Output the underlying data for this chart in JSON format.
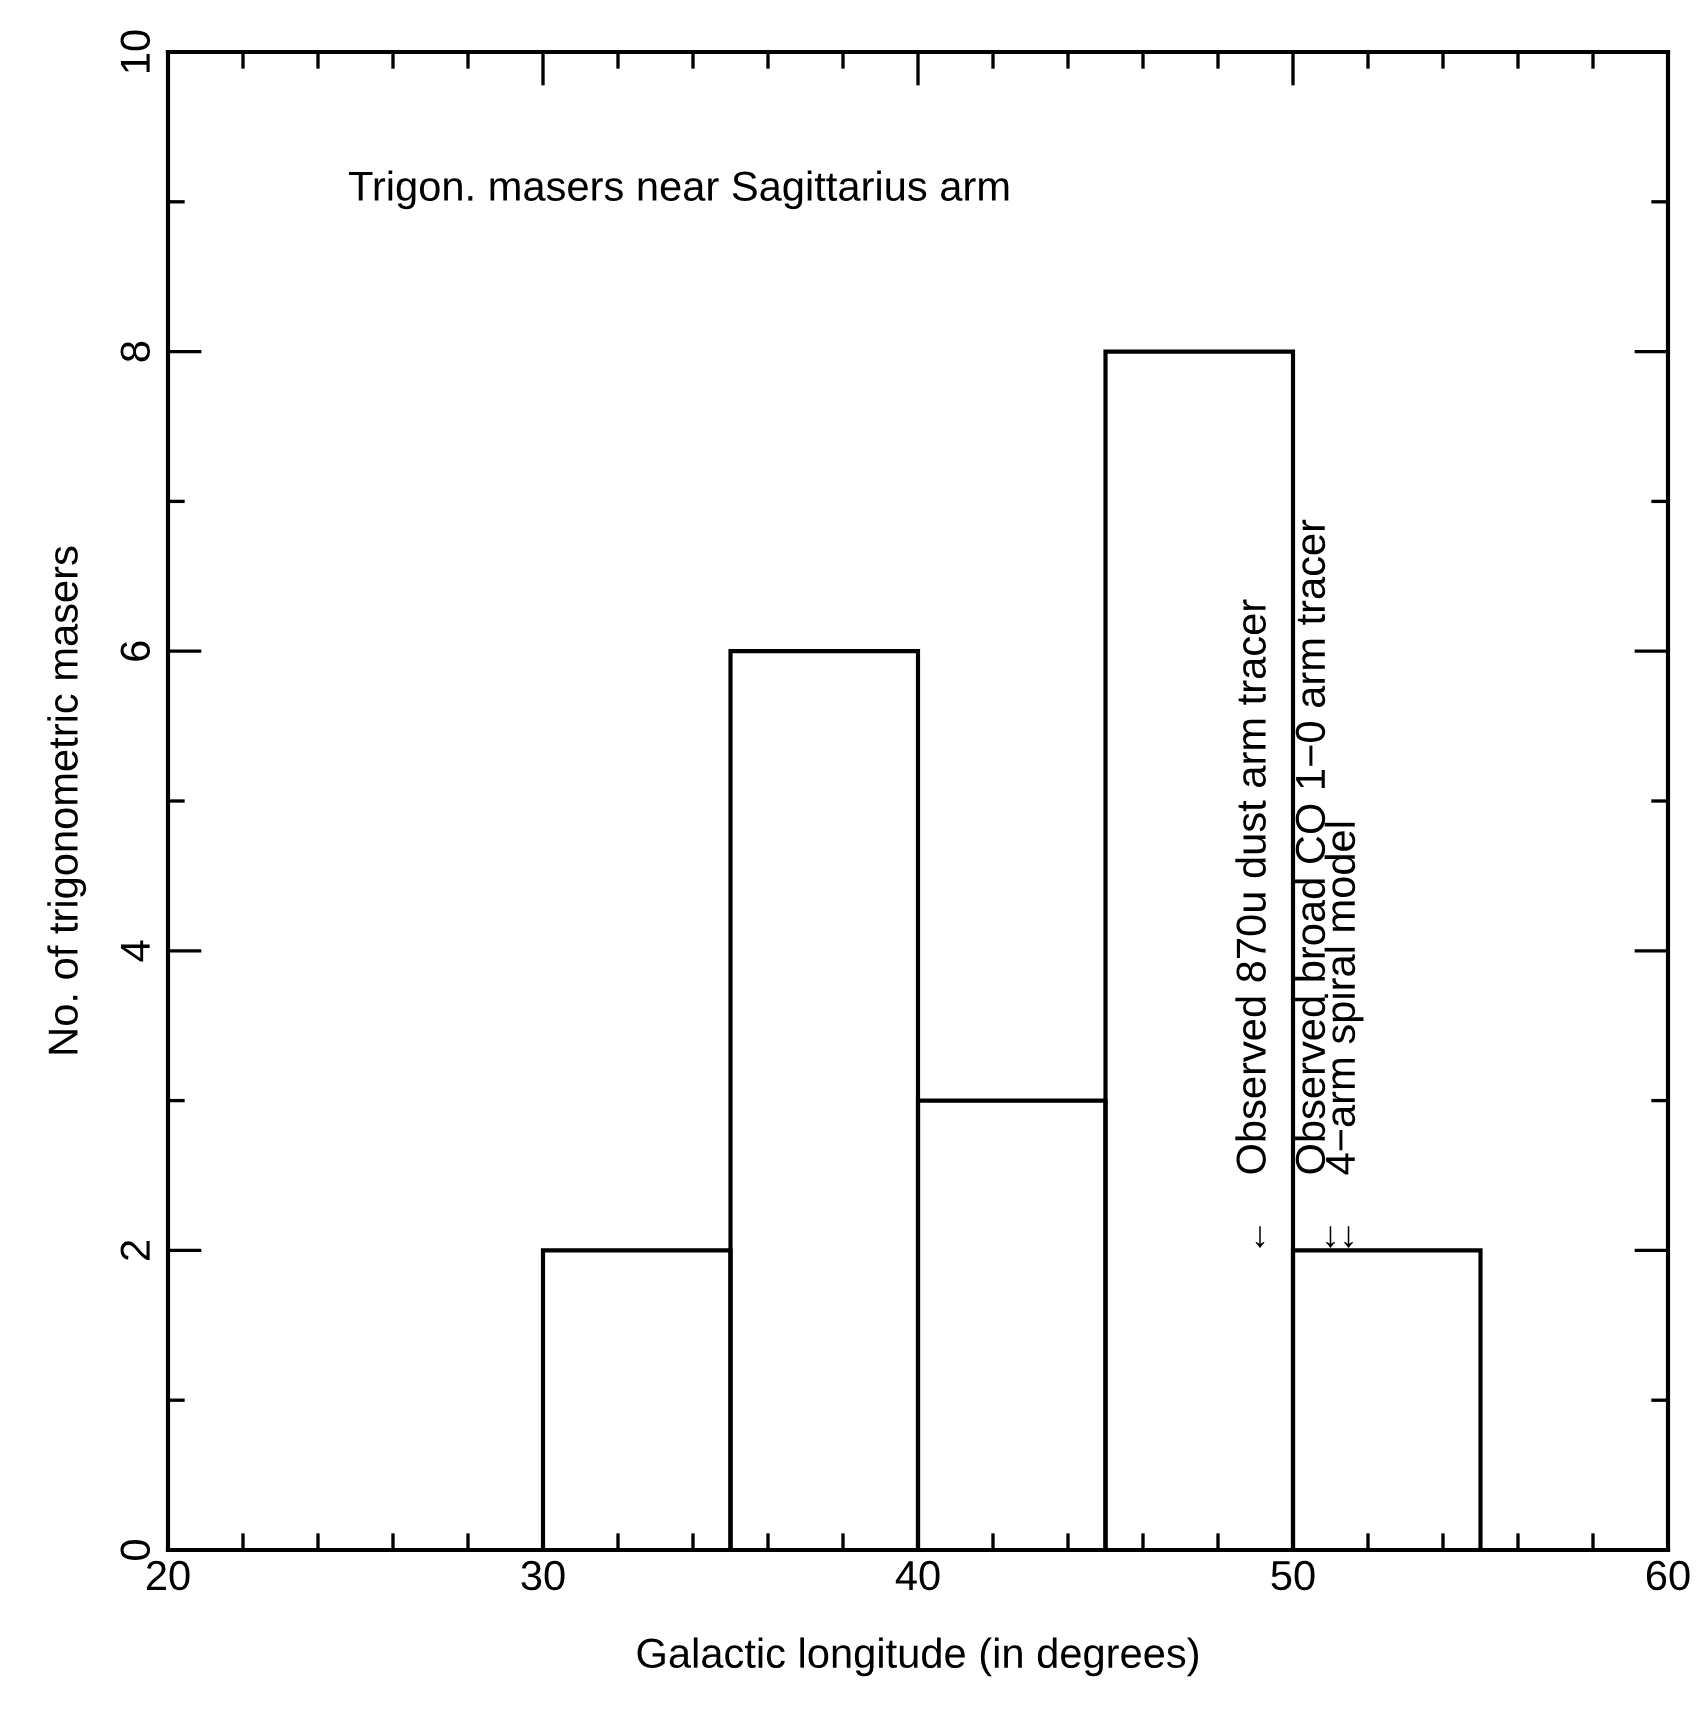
{
  "chart_data": {
    "type": "histogram",
    "title": "Trigon. masers near Sagittarius arm",
    "xlabel": "Galactic longitude (in degrees)",
    "ylabel": "No. of trigonometric masers",
    "bins": [
      30,
      35,
      40,
      45,
      50,
      55
    ],
    "values": [
      2,
      6,
      3,
      8,
      2
    ],
    "color": "#000000",
    "xlim": [
      20,
      60
    ],
    "xticks": [
      20,
      30,
      40,
      50,
      60
    ],
    "ylim": [
      0,
      10
    ],
    "yticks": [
      0,
      2,
      4,
      6,
      8,
      10
    ],
    "grid": false,
    "annotations": [
      "Observed 870u dust arm tracer",
      "Observed broad CO 1−0 arm tracer",
      "4−arm spiral model",
      "↓",
      "↓↓"
    ]
  }
}
